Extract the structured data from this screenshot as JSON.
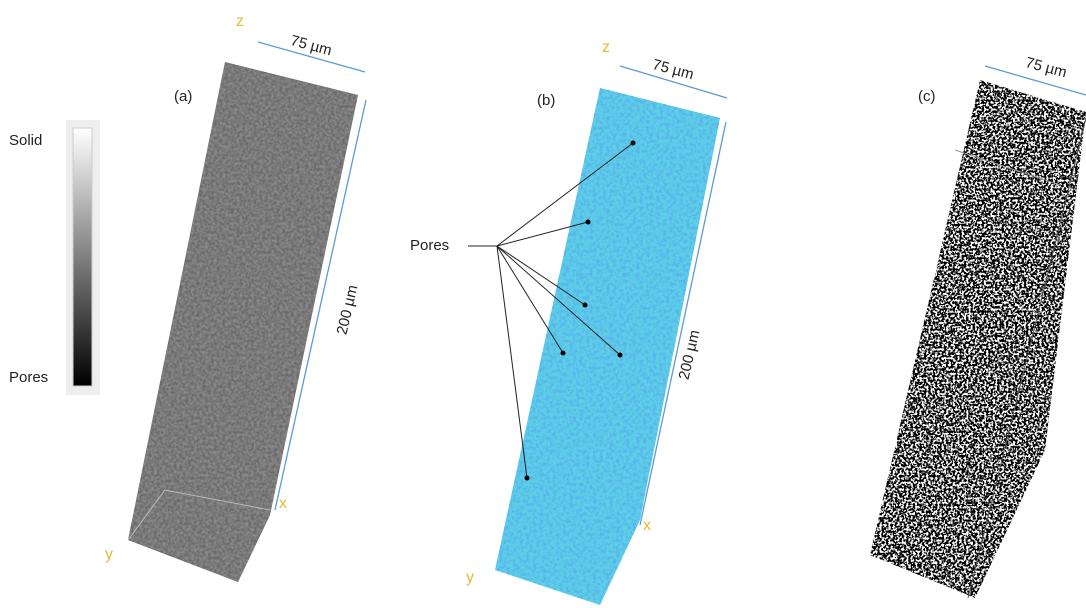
{
  "colorbar": {
    "top_label": "Solid",
    "bottom_label": "Pores"
  },
  "panels": [
    {
      "label": "(a)",
      "axis_z": "z",
      "axis_x": "x",
      "axis_y": "y",
      "width": "75 µm",
      "height": "200 µm"
    },
    {
      "label": "(b)",
      "axis_z": "z",
      "axis_x": "x",
      "axis_y": "y",
      "width": "75 µm",
      "height": "200 µm",
      "callout": "Pores"
    },
    {
      "label": "(c)",
      "width": "75 µm"
    }
  ]
}
